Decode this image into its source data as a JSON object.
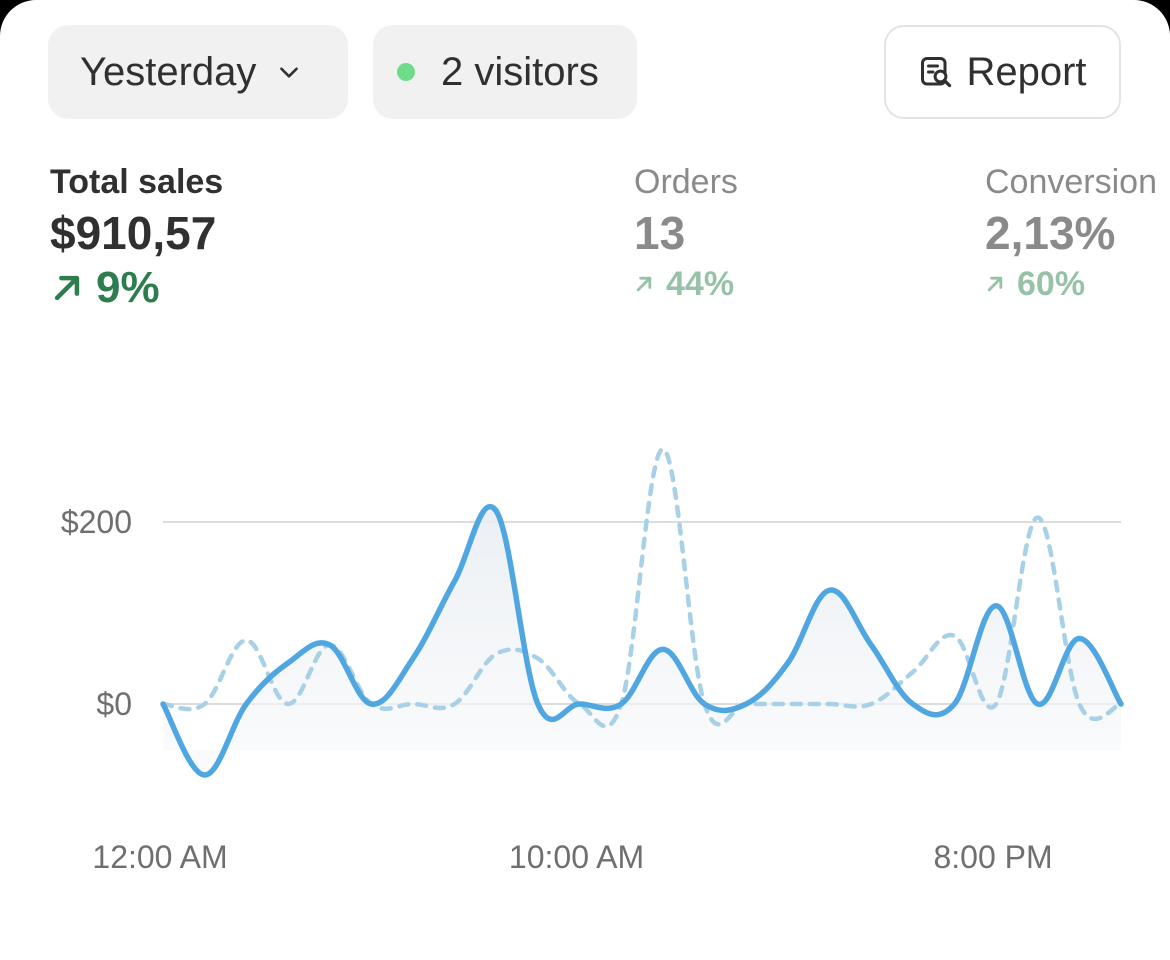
{
  "filters": {
    "period": "Yesterday",
    "visitors": "2 visitors",
    "report_label": "Report"
  },
  "metrics": {
    "total_sales": {
      "label": "Total sales",
      "value": "$910,57",
      "delta": "9%"
    },
    "orders": {
      "label": "Orders",
      "value": "13",
      "delta": "44%"
    },
    "conversion": {
      "label": "Conversion",
      "value": "2,13%",
      "delta": "60%"
    }
  },
  "colors": {
    "primary_line": "#4fa6e0",
    "comparison_line": "#a8d0e6",
    "positive": "#2e7d4f",
    "live_dot": "#6fdc8c"
  },
  "icons": [
    "chevron-down-icon",
    "live-dot-icon",
    "report-search-icon",
    "arrow-up-right-icon"
  ],
  "chart_data": {
    "type": "line",
    "y_ticks": [
      {
        "value": 0,
        "label": "$0"
      },
      {
        "value": 200,
        "label": "$200"
      }
    ],
    "x_ticks": [
      {
        "hour": 0,
        "label": "12:00 AM"
      },
      {
        "hour": 10,
        "label": "10:00 AM"
      },
      {
        "hour": 20,
        "label": "8:00 PM"
      }
    ],
    "ylim": [
      -90,
      290
    ],
    "xlim": [
      0,
      23
    ],
    "grid": true,
    "series": [
      {
        "style": "solid",
        "points": [
          [
            0,
            0
          ],
          [
            1,
            -78
          ],
          [
            2,
            0
          ],
          [
            3,
            45
          ],
          [
            4,
            65
          ],
          [
            5,
            0
          ],
          [
            6,
            50
          ],
          [
            7,
            135
          ],
          [
            8,
            212
          ],
          [
            9,
            0
          ],
          [
            10,
            0
          ],
          [
            11,
            0
          ],
          [
            12,
            60
          ],
          [
            13,
            0
          ],
          [
            14,
            0
          ],
          [
            15,
            45
          ],
          [
            16,
            125
          ],
          [
            17,
            65
          ],
          [
            18,
            0
          ],
          [
            19,
            0
          ],
          [
            20,
            108
          ],
          [
            21,
            0
          ],
          [
            22,
            72
          ],
          [
            23,
            0
          ]
        ]
      },
      {
        "style": "dashed",
        "points": [
          [
            0,
            0
          ],
          [
            1,
            0
          ],
          [
            2,
            70
          ],
          [
            3,
            0
          ],
          [
            4,
            65
          ],
          [
            5,
            0
          ],
          [
            6,
            0
          ],
          [
            7,
            0
          ],
          [
            8,
            55
          ],
          [
            9,
            50
          ],
          [
            10,
            0
          ],
          [
            11,
            0
          ],
          [
            12,
            280
          ],
          [
            13,
            0
          ],
          [
            14,
            0
          ],
          [
            15,
            0
          ],
          [
            16,
            0
          ],
          [
            17,
            0
          ],
          [
            18,
            35
          ],
          [
            19,
            75
          ],
          [
            20,
            0
          ],
          [
            21,
            205
          ],
          [
            22,
            0
          ],
          [
            23,
            0
          ]
        ]
      }
    ]
  }
}
